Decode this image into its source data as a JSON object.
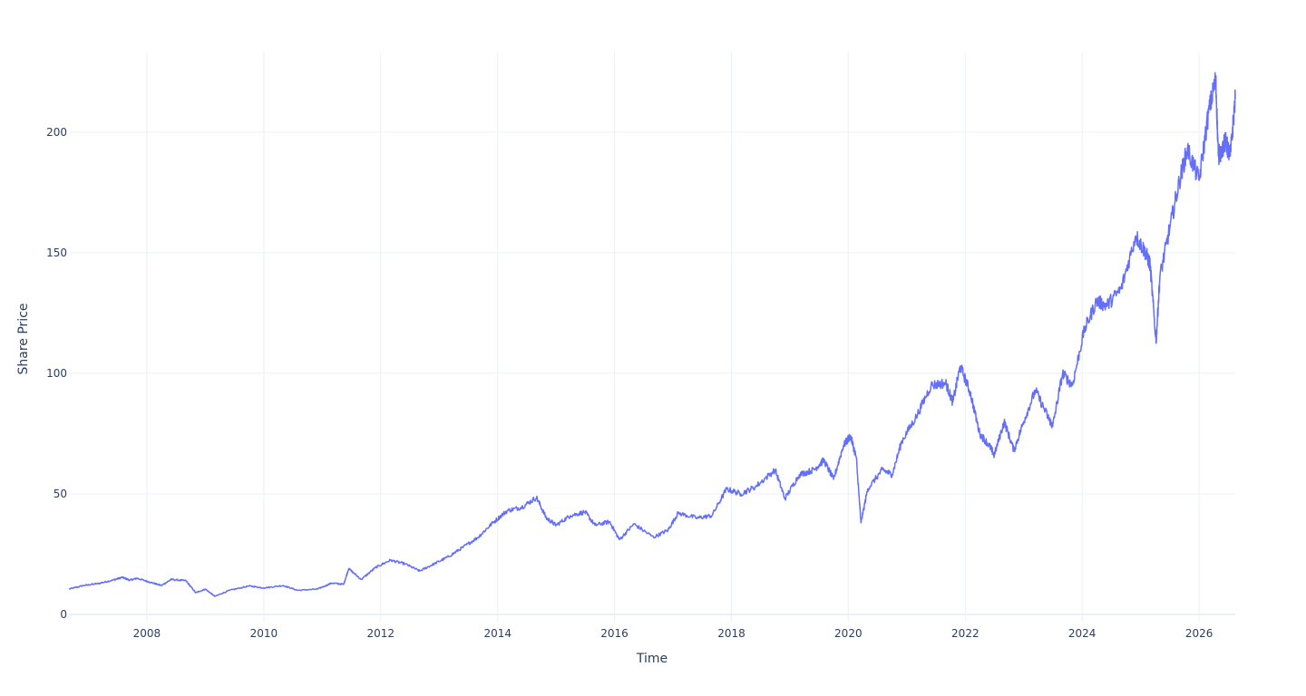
{
  "chart_data": {
    "type": "line",
    "title": "",
    "xlabel": "Time",
    "ylabel": "Share Price",
    "xlim": [
      "2006-09-01",
      "2026-08-15"
    ],
    "ylim": [
      -3,
      233
    ],
    "x_ticks": [
      "2008",
      "2010",
      "2012",
      "2014",
      "2016",
      "2018",
      "2020",
      "2022",
      "2024",
      "2026"
    ],
    "y_ticks": [
      0,
      50,
      100,
      150,
      200
    ],
    "grid": true,
    "legend": "none",
    "colors": {
      "line": "#636efa",
      "grid": "#ebf0f8",
      "text": "#2a3f5f"
    },
    "series": [
      {
        "values": [
          [
            "2006-09-01",
            10.5
          ],
          [
            "2006-12-01",
            12.0
          ],
          [
            "2007-03-01",
            12.8
          ],
          [
            "2007-06-01",
            14.2
          ],
          [
            "2007-08-01",
            15.4
          ],
          [
            "2007-09-15",
            14.2
          ],
          [
            "2007-11-01",
            15.0
          ],
          [
            "2008-01-15",
            13.5
          ],
          [
            "2008-04-01",
            12.0
          ],
          [
            "2008-06-01",
            14.5
          ],
          [
            "2008-09-01",
            14.0
          ],
          [
            "2008-11-01",
            9.0
          ],
          [
            "2009-01-01",
            10.5
          ],
          [
            "2009-03-01",
            7.5
          ],
          [
            "2009-06-01",
            10.0
          ],
          [
            "2009-10-01",
            11.8
          ],
          [
            "2010-01-01",
            11.0
          ],
          [
            "2010-05-01",
            12.0
          ],
          [
            "2010-08-01",
            10.0
          ],
          [
            "2010-12-01",
            10.5
          ],
          [
            "2011-03-01",
            13.0
          ],
          [
            "2011-05-15",
            12.5
          ],
          [
            "2011-06-15",
            19.0
          ],
          [
            "2011-09-01",
            14.5
          ],
          [
            "2011-12-01",
            19.5
          ],
          [
            "2012-03-01",
            22.5
          ],
          [
            "2012-06-01",
            21.0
          ],
          [
            "2012-09-01",
            18.0
          ],
          [
            "2012-12-01",
            21.0
          ],
          [
            "2013-03-01",
            24.0
          ],
          [
            "2013-06-01",
            28.0
          ],
          [
            "2013-09-01",
            32.0
          ],
          [
            "2013-12-01",
            38.0
          ],
          [
            "2014-03-01",
            43.0
          ],
          [
            "2014-06-01",
            44.5
          ],
          [
            "2014-09-01",
            48.5
          ],
          [
            "2014-11-01",
            40.0
          ],
          [
            "2015-01-01",
            37.0
          ],
          [
            "2015-04-01",
            41.0
          ],
          [
            "2015-07-01",
            42.5
          ],
          [
            "2015-09-01",
            37.0
          ],
          [
            "2015-12-01",
            38.5
          ],
          [
            "2016-02-01",
            31.0
          ],
          [
            "2016-05-01",
            37.5
          ],
          [
            "2016-09-01",
            32.0
          ],
          [
            "2016-12-01",
            35.0
          ],
          [
            "2017-02-01",
            42.0
          ],
          [
            "2017-06-01",
            40.0
          ],
          [
            "2017-09-01",
            41.0
          ],
          [
            "2017-12-01",
            52.0
          ],
          [
            "2018-03-01",
            50.0
          ],
          [
            "2018-06-01",
            53.0
          ],
          [
            "2018-10-01",
            60.0
          ],
          [
            "2018-12-01",
            48.0
          ],
          [
            "2019-03-01",
            58.0
          ],
          [
            "2019-06-01",
            60.0
          ],
          [
            "2019-08-01",
            64.0
          ],
          [
            "2019-10-01",
            56.0
          ],
          [
            "2019-12-01",
            70.0
          ],
          [
            "2020-01-15",
            74.0
          ],
          [
            "2020-02-20",
            65.0
          ],
          [
            "2020-03-20",
            38.0
          ],
          [
            "2020-05-01",
            52.0
          ],
          [
            "2020-08-01",
            60.0
          ],
          [
            "2020-10-01",
            58.0
          ],
          [
            "2020-12-01",
            72.0
          ],
          [
            "2021-03-01",
            82.0
          ],
          [
            "2021-06-01",
            95.0
          ],
          [
            "2021-09-01",
            96.0
          ],
          [
            "2021-10-15",
            88.0
          ],
          [
            "2021-12-01",
            103.0
          ],
          [
            "2022-02-01",
            92.0
          ],
          [
            "2022-04-01",
            75.0
          ],
          [
            "2022-06-01",
            70.0
          ],
          [
            "2022-07-01",
            66.0
          ],
          [
            "2022-09-01",
            80.0
          ],
          [
            "2022-11-01",
            68.0
          ],
          [
            "2023-01-01",
            80.0
          ],
          [
            "2023-03-15",
            93.0
          ],
          [
            "2023-06-01",
            82.0
          ],
          [
            "2023-07-01",
            78.0
          ],
          [
            "2023-09-01",
            100.0
          ],
          [
            "2023-11-01",
            95.0
          ],
          [
            "2024-01-15",
            118.0
          ],
          [
            "2024-04-01",
            130.0
          ],
          [
            "2024-06-01",
            128.0
          ],
          [
            "2024-09-01",
            135.0
          ],
          [
            "2024-12-01",
            157.0
          ],
          [
            "2025-02-01",
            150.0
          ],
          [
            "2025-03-01",
            145.0
          ],
          [
            "2025-04-07",
            113.0
          ],
          [
            "2025-05-01",
            140.0
          ],
          [
            "2025-07-01",
            160.0
          ],
          [
            "2025-09-01",
            180.0
          ],
          [
            "2025-10-20",
            193.0
          ],
          [
            "2026-01-01",
            180.0
          ],
          [
            "2026-03-01",
            208.0
          ],
          [
            "2026-04-15",
            222.0
          ],
          [
            "2026-05-01",
            190.0
          ],
          [
            "2026-06-15",
            196.0
          ],
          [
            "2026-07-15",
            190.0
          ],
          [
            "2026-08-15",
            214.0
          ]
        ]
      }
    ]
  }
}
